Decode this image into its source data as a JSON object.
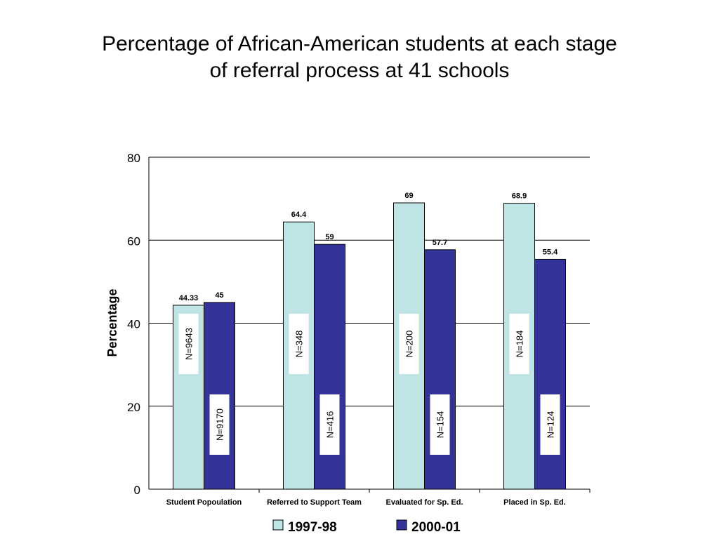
{
  "slide": {
    "title_line1": "Percentage of African-American students at each stage",
    "title_line2": "of referral process at 41 schools"
  },
  "colors": {
    "series_1997": "#bfe4e6",
    "series_2000": "#333399",
    "gridline": "#000000",
    "n_box_fill": "#ffffff"
  },
  "chart_data": {
    "type": "bar",
    "title": "Percentage of African-American students at each stage of referral process at 41 schools",
    "ylabel": "Percentage",
    "xlabel": "",
    "ylim": [
      0,
      80
    ],
    "yticks": [
      0,
      20,
      40,
      60,
      80
    ],
    "grid": true,
    "legend_position": "bottom",
    "categories": [
      "Student Popoulation",
      "Referred to Support Team",
      "Evaluated for Sp. Ed.",
      "Placed in Sp. Ed."
    ],
    "series": [
      {
        "name": "1997-98",
        "values": [
          44.33,
          64.4,
          69,
          68.9
        ],
        "value_labels": [
          "44.33",
          "64.4",
          "69",
          "68.9"
        ],
        "n_labels": [
          "N=9643",
          "N=348",
          "N=200",
          "N=184"
        ]
      },
      {
        "name": "2000-01",
        "values": [
          45,
          59,
          57.7,
          55.4
        ],
        "value_labels": [
          "45",
          "59",
          "57.7",
          "55.4"
        ],
        "n_labels": [
          "N=9170",
          "N=416",
          "N=154",
          "N=124"
        ]
      }
    ]
  }
}
